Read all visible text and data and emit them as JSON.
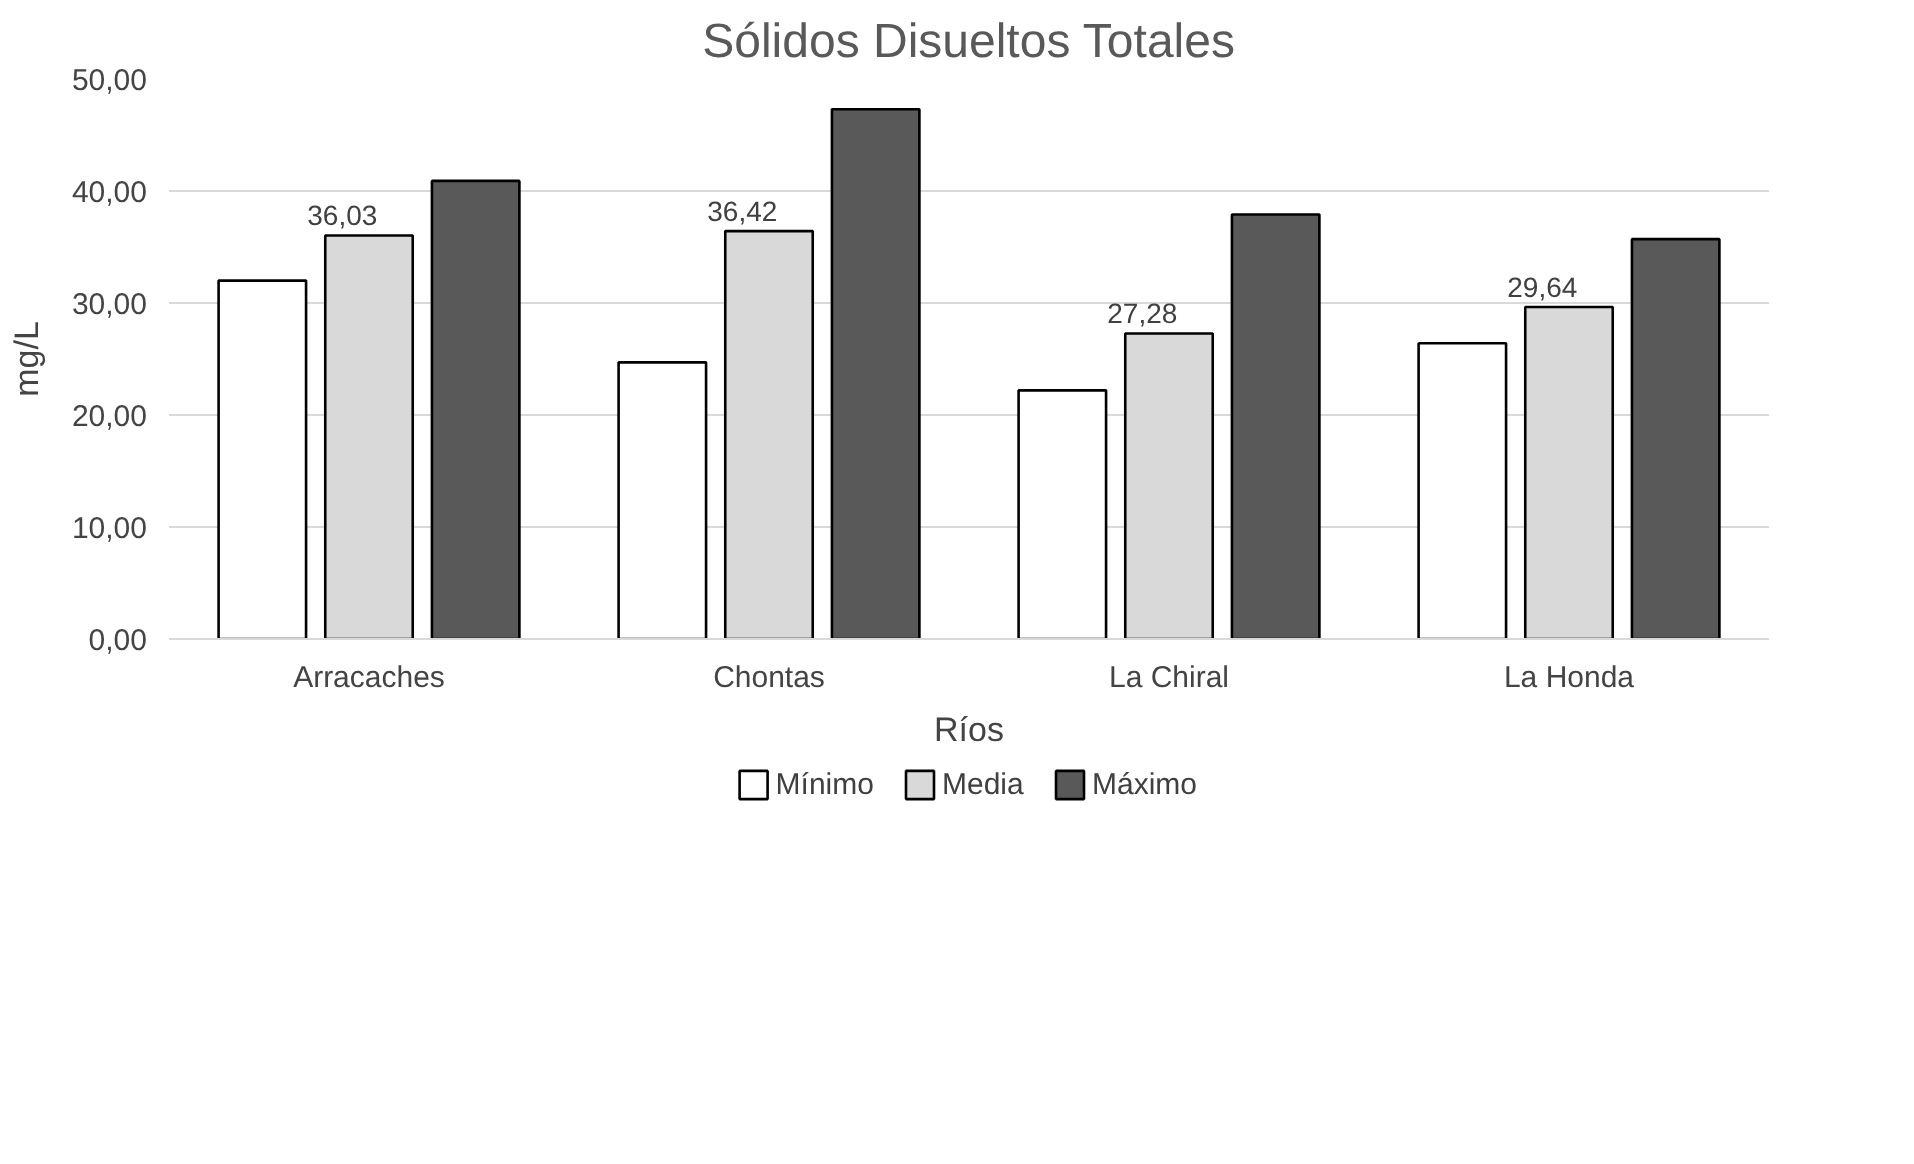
{
  "chart_data": {
    "type": "bar",
    "title": "Sólidos Disueltos Totales",
    "xlabel": "Ríos",
    "ylabel": "mg/L",
    "categories": [
      "Arracaches",
      "Chontas",
      "La Chiral",
      "La Honda"
    ],
    "series": [
      {
        "name": "Mínimo",
        "color": "#ffffff",
        "values": [
          32.0,
          24.7,
          22.2,
          26.4
        ]
      },
      {
        "name": "Media",
        "color": "#d9d9d9",
        "values": [
          36.03,
          36.42,
          27.28,
          29.64
        ],
        "value_labels": [
          "36,03",
          "36,42",
          "27,28",
          "29,64"
        ]
      },
      {
        "name": "Máximo",
        "color": "#595959",
        "values": [
          40.9,
          47.3,
          37.9,
          35.7
        ]
      }
    ],
    "ylim": [
      0,
      50
    ],
    "yticks": [
      {
        "value": 0,
        "label": "0,00"
      },
      {
        "value": 10,
        "label": "10,00"
      },
      {
        "value": 20,
        "label": "20,00"
      },
      {
        "value": 30,
        "label": "30,00"
      },
      {
        "value": 40,
        "label": "40,00"
      },
      {
        "value": 50,
        "label": "50,00"
      }
    ],
    "grid": "y",
    "legend": "bottom"
  }
}
